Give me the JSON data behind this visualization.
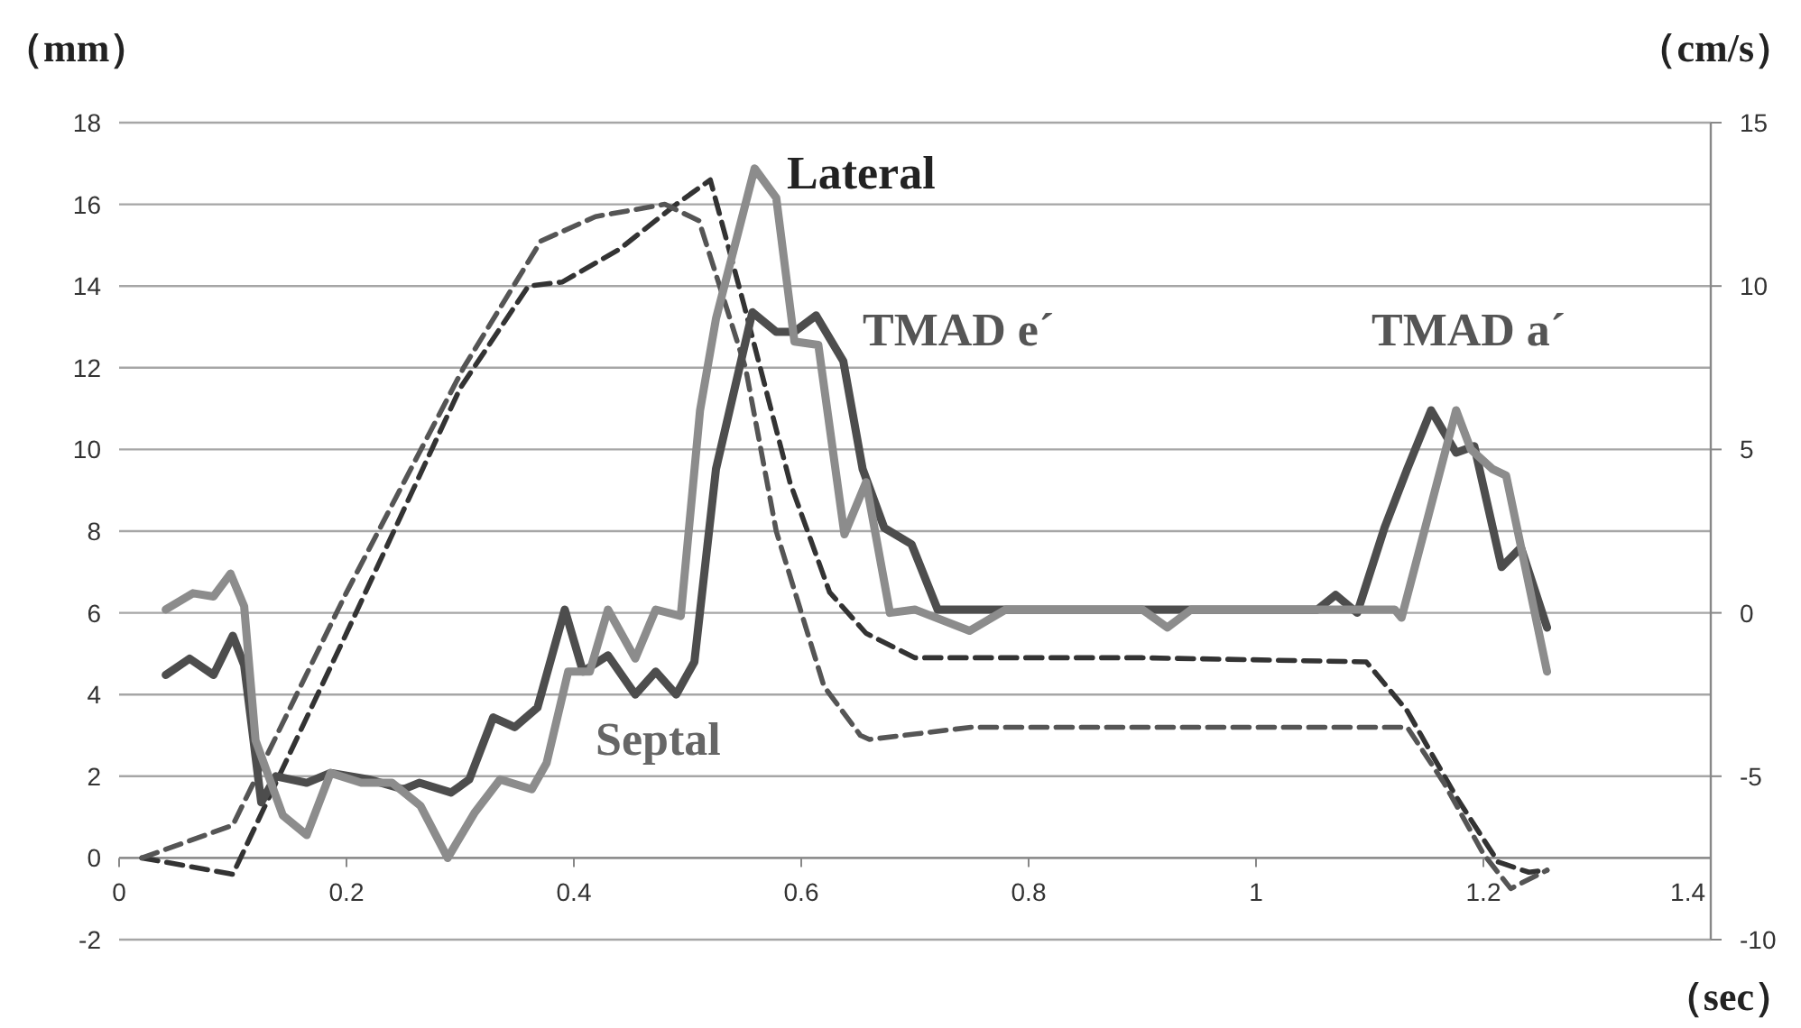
{
  "chart_data": {
    "type": "line",
    "xlabel": "（sec）",
    "ylabel": "（mm）",
    "y2label": "（cm/s）",
    "xlim": [
      0,
      1.4
    ],
    "xticks": [
      0,
      0.2,
      0.4,
      0.6,
      0.8,
      1,
      1.2,
      1.4
    ],
    "ylim": [
      -2,
      18
    ],
    "yticks": [
      -2,
      0,
      2,
      4,
      6,
      8,
      10,
      12,
      14,
      16,
      18
    ],
    "y2lim": [
      -10,
      15
    ],
    "y2ticks": [
      -10,
      -5,
      0,
      5,
      10,
      15
    ],
    "grid": "y",
    "marker": "none",
    "annotations": [
      "Lateral",
      "TMAD e´",
      "TMAD a´",
      "Septal"
    ],
    "series": [
      {
        "color": "#333333",
        "line_style": "dashed",
        "x": [
          0.02,
          0.1,
          0.2,
          0.3,
          0.36,
          0.39,
          0.44,
          0.49,
          0.52,
          0.55,
          0.59,
          0.625,
          0.657,
          0.7,
          0.9,
          1.097,
          1.133,
          1.176,
          1.213,
          1.24,
          1.256
        ],
        "values": [
          0,
          -0.4,
          5.5,
          11.5,
          14.0,
          14.1,
          14.9,
          16.0,
          16.6,
          13.5,
          9.2,
          6.5,
          5.5,
          4.9,
          4.9,
          4.8,
          3.6,
          1.5,
          -0.1,
          -0.35,
          -0.3
        ]
      },
      {
        "color": "#555555",
        "line_style": "dashed",
        "x": [
          0.02,
          0.1,
          0.2,
          0.303,
          0.371,
          0.419,
          0.48,
          0.51,
          0.551,
          0.578,
          0.62,
          0.652,
          0.66,
          0.75,
          0.927,
          1.133,
          1.165,
          1.2,
          1.224,
          1.256
        ],
        "values": [
          0,
          0.8,
          6.5,
          12.0,
          15.1,
          15.7,
          16.0,
          15.6,
          12.0,
          8.0,
          4.2,
          3.0,
          2.9,
          3.2,
          3.2,
          3.2,
          1.85,
          0.1,
          -0.75,
          -0.3
        ]
      },
      {
        "color": "#4d4d4d",
        "line_style": "solid",
        "axis": "y2",
        "x": [
          0.041,
          0.062,
          0.083,
          0.1,
          0.11,
          0.125,
          0.138,
          0.165,
          0.186,
          0.22,
          0.25,
          0.264,
          0.292,
          0.308,
          0.329,
          0.348,
          0.368,
          0.392,
          0.408,
          0.43,
          0.454,
          0.472,
          0.49,
          0.506,
          0.525,
          0.557,
          0.578,
          0.594,
          0.613,
          0.637,
          0.654,
          0.673,
          0.697,
          0.72,
          1.054,
          1.07,
          1.089,
          1.113,
          1.133,
          1.154,
          1.176,
          1.192,
          1.216,
          1.233,
          1.256
        ],
        "values": [
          -1.9,
          -1.4,
          -1.9,
          -0.7,
          -1.6,
          -5.8,
          -5.0,
          -5.2,
          -4.9,
          -5.1,
          -5.4,
          -5.2,
          -5.5,
          -5.1,
          -3.2,
          -3.5,
          -2.9,
          0.1,
          -1.8,
          -1.3,
          -2.5,
          -1.8,
          -2.5,
          -1.5,
          4.4,
          9.2,
          8.6,
          8.6,
          9.1,
          7.7,
          4.4,
          2.6,
          2.1,
          0.1,
          0.1,
          0.55,
          0,
          2.6,
          4.4,
          6.2,
          4.9,
          5.1,
          1.4,
          2.0,
          -0.45
        ]
      },
      {
        "color": "#8c8c8c",
        "line_style": "solid",
        "axis": "y2",
        "x": [
          0.041,
          0.065,
          0.083,
          0.098,
          0.11,
          0.12,
          0.144,
          0.165,
          0.186,
          0.213,
          0.24,
          0.265,
          0.289,
          0.313,
          0.335,
          0.363,
          0.376,
          0.395,
          0.414,
          0.43,
          0.454,
          0.472,
          0.494,
          0.511,
          0.525,
          0.559,
          0.578,
          0.594,
          0.615,
          0.638,
          0.657,
          0.678,
          0.7,
          0.748,
          0.78,
          0.9,
          0.922,
          0.943,
          1.122,
          1.128,
          1.176,
          1.189,
          1.208,
          1.22,
          1.256
        ],
        "values": [
          0.1,
          0.6,
          0.5,
          1.2,
          0.2,
          -3.9,
          -6.2,
          -6.8,
          -4.9,
          -5.2,
          -5.2,
          -5.9,
          -7.5,
          -6.1,
          -5.1,
          -5.4,
          -4.6,
          -1.8,
          -1.8,
          0.1,
          -1.4,
          0.1,
          -0.1,
          6.2,
          9.0,
          13.6,
          12.7,
          8.3,
          8.2,
          2.4,
          4.0,
          0,
          0.1,
          -0.55,
          0.1,
          0.1,
          -0.45,
          0.1,
          0.1,
          -0.15,
          6.2,
          5.0,
          4.4,
          4.2,
          -1.8
        ]
      }
    ]
  }
}
